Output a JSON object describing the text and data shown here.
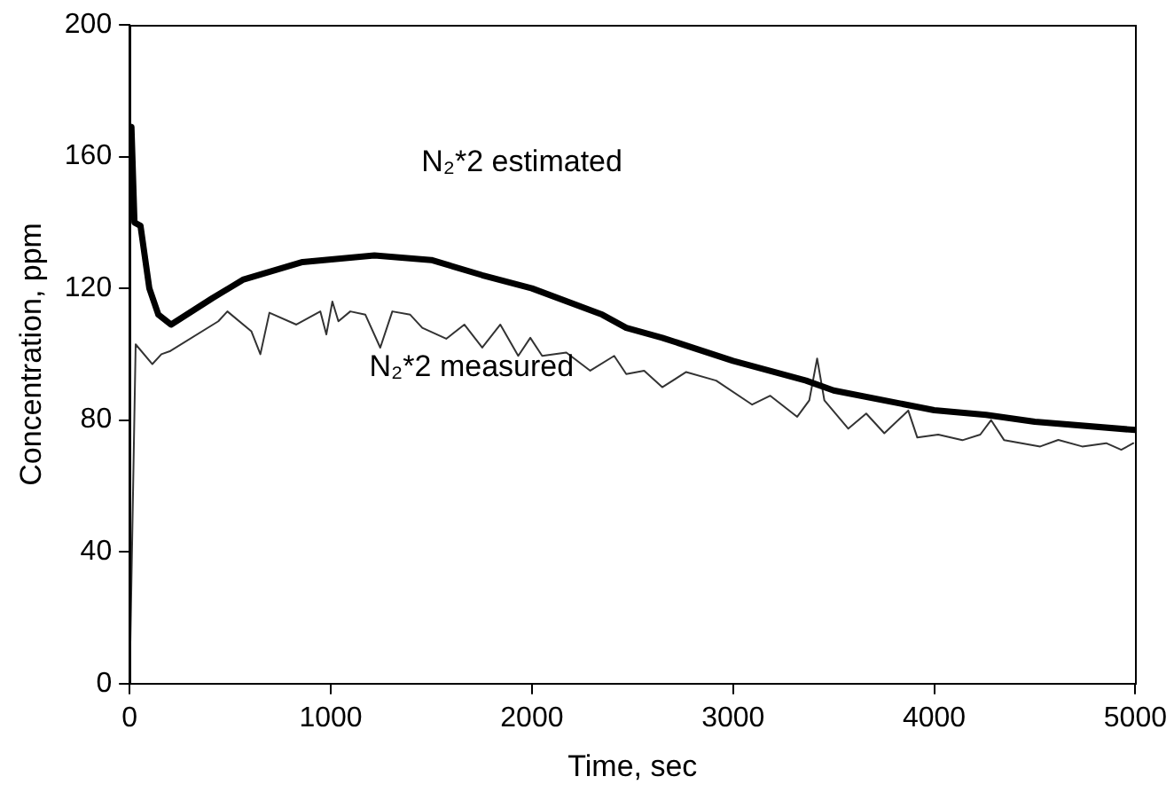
{
  "chart_data": {
    "type": "line",
    "xlabel": "Time, sec",
    "ylabel": "Concentration, ppm",
    "xlim": [
      0,
      5000
    ],
    "xticks": [
      0,
      1000,
      2000,
      3000,
      4000,
      5000
    ],
    "ylim": [
      0,
      200
    ],
    "yticks": [
      0,
      40,
      80,
      120,
      160,
      200
    ],
    "grid": false,
    "legend": false,
    "marker": "none",
    "line_style": "solid",
    "series": [
      {
        "name": "N₂*2 estimated",
        "color": "#000000",
        "x": [
          0,
          9,
          24,
          54,
          98,
          143,
          206,
          411,
          563,
          860,
          1217,
          1500,
          1753,
          2000,
          2350,
          2469,
          2648,
          3000,
          3363,
          3500,
          4000,
          4258,
          4500,
          5000
        ],
        "values": [
          168,
          169,
          140,
          139,
          120,
          112,
          109,
          117,
          122.6,
          128,
          130,
          128.6,
          124,
          120,
          112,
          108,
          105,
          98,
          92,
          89,
          83,
          81.6,
          79.5,
          77
        ]
      },
      {
        "name": "N₂*2 measured",
        "color": "#333333",
        "x": [
          0,
          30,
          113,
          158,
          203,
          441,
          486,
          605,
          650,
          695,
          829,
          948,
          978,
          1008,
          1038,
          1097,
          1172,
          1246,
          1306,
          1395,
          1455,
          1574,
          1664,
          1753,
          1843,
          1932,
          1992,
          2051,
          2171,
          2290,
          2409,
          2469,
          2558,
          2648,
          2767,
          2916,
          3095,
          3185,
          3319,
          3379,
          3418,
          3454,
          3573,
          3662,
          3752,
          3871,
          3916,
          4020,
          4140,
          4229,
          4283,
          4348,
          4527,
          4617,
          4736,
          4855,
          4930,
          4990
        ],
        "values": [
          0,
          103,
          97,
          100,
          101,
          110,
          113,
          107,
          100,
          112.6,
          109,
          113,
          106,
          116,
          110,
          113,
          112,
          102,
          113,
          112,
          108,
          104.7,
          109,
          102,
          109,
          99.5,
          105,
          99.5,
          100.5,
          95,
          99.5,
          94,
          95,
          90,
          94.6,
          92,
          84.7,
          87.4,
          81,
          86,
          98.7,
          86,
          77.4,
          82,
          76,
          82.9,
          74.7,
          75.6,
          73.9,
          75.6,
          80,
          73.9,
          72,
          74,
          72,
          73,
          71,
          73
        ]
      }
    ]
  }
}
